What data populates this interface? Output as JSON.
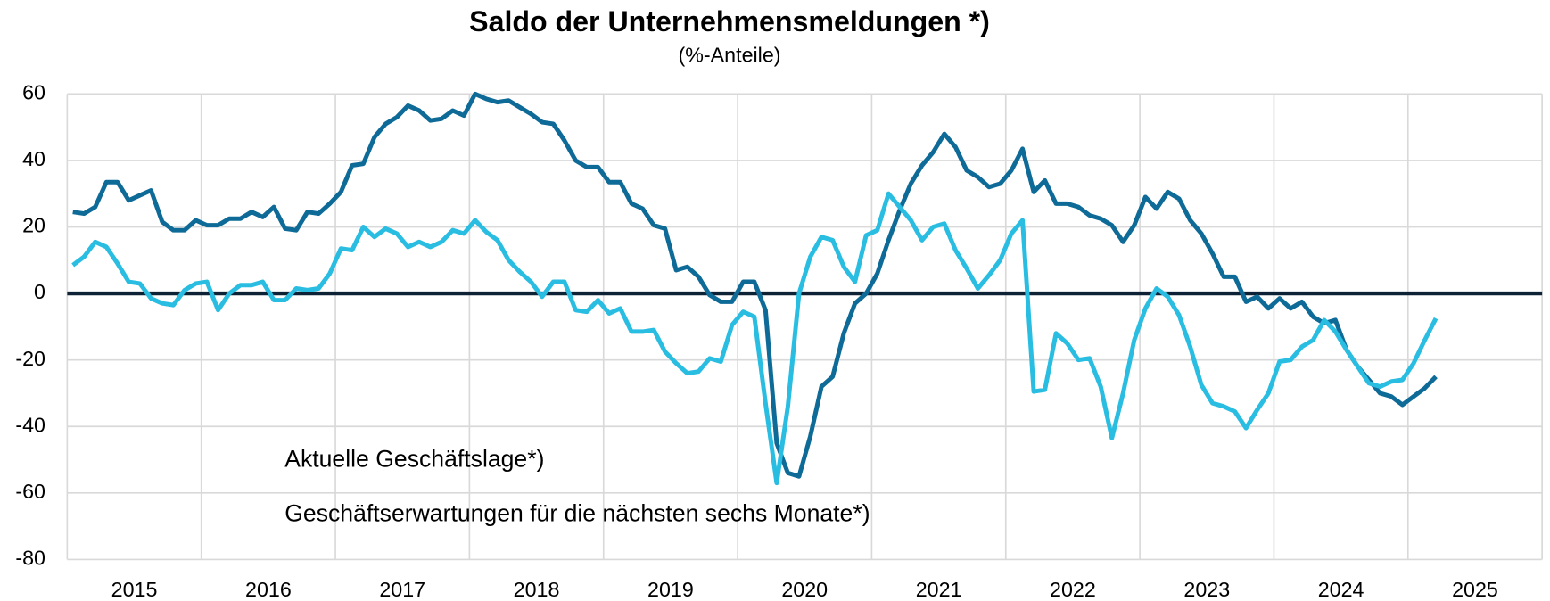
{
  "chart_data": {
    "type": "line",
    "title": "Saldo der Unternehmensmeldungen *)",
    "subtitle": "(%-Anteile)",
    "x": [
      "2015",
      null,
      null,
      null,
      null,
      null,
      null,
      null,
      null,
      null,
      null,
      null,
      "2016",
      null,
      null,
      null,
      null,
      null,
      null,
      null,
      null,
      null,
      null,
      null,
      "2017",
      null,
      null,
      null,
      null,
      null,
      null,
      null,
      null,
      null,
      null,
      null,
      "2018",
      null,
      null,
      null,
      null,
      null,
      null,
      null,
      null,
      null,
      null,
      null,
      "2019",
      null,
      null,
      null,
      null,
      null,
      null,
      null,
      null,
      null,
      null,
      null,
      "2020",
      null,
      null,
      null,
      null,
      null,
      null,
      null,
      null,
      null,
      null,
      null,
      "2021",
      null,
      null,
      null,
      null,
      null,
      null,
      null,
      null,
      null,
      null,
      null,
      "2022",
      null,
      null,
      null,
      null,
      null,
      null,
      null,
      null,
      null,
      null,
      null,
      "2023",
      null,
      null,
      null,
      null,
      null,
      null,
      null,
      null,
      null,
      null,
      null,
      "2024",
      null,
      null,
      null,
      null,
      null,
      null,
      null,
      null,
      null,
      null,
      null,
      "2025",
      null,
      null
    ],
    "series": [
      {
        "name": "Aktuelle Geschäftslage*)",
        "color": "#0e6a97",
        "values": [
          24.5,
          24,
          26,
          33.5,
          33.5,
          28,
          29.5,
          31,
          21.5,
          19,
          19,
          22,
          20.5,
          20.5,
          22.5,
          22.5,
          24.5,
          23,
          26,
          19.5,
          19,
          24.5,
          24,
          27,
          30.5,
          38.5,
          39,
          47,
          51,
          53,
          56.5,
          55,
          52,
          52.5,
          55,
          53.5,
          60,
          58.5,
          57.5,
          58,
          56,
          54,
          51.5,
          51,
          46,
          40,
          38,
          38,
          33.5,
          33.5,
          27,
          25.5,
          20.5,
          19.5,
          7,
          8,
          5,
          -0.5,
          -2.5,
          -2.5,
          3.5,
          3.5,
          -5,
          -45,
          -54,
          -55,
          -43,
          -28,
          -25,
          -12,
          -3,
          0,
          6,
          16,
          25,
          33,
          38.5,
          42.5,
          48,
          44,
          37,
          35,
          32,
          33,
          37,
          43.5,
          30.5,
          34,
          27,
          27,
          26,
          23.5,
          22.5,
          20.5,
          15.5,
          20.5,
          29,
          25.5,
          30.5,
          28.5,
          22,
          18,
          12,
          5,
          5,
          -2.5,
          -1,
          -4.5,
          -1.5,
          -4.5,
          -2.5,
          -7,
          -9,
          -8,
          -17,
          -22,
          -26,
          -30,
          -31,
          -33.5,
          -31,
          -28.5,
          -25
        ]
      },
      {
        "name": "Geschäftserwartungen für die nächsten sechs Monate*)",
        "color": "#29bde2",
        "values": [
          8.5,
          11,
          15.5,
          14,
          9,
          3.5,
          3,
          -1.5,
          -3,
          -3.5,
          1,
          3,
          3.5,
          -5,
          0,
          2.5,
          2.5,
          3.5,
          -2,
          -2,
          1.5,
          1,
          1.5,
          6,
          13.5,
          13,
          20,
          17,
          19.5,
          18,
          14,
          15.5,
          14,
          15.5,
          19,
          18,
          22,
          18.5,
          16,
          10,
          6.5,
          3.5,
          -1,
          3.5,
          3.5,
          -5,
          -5.5,
          -2,
          -6,
          -4.5,
          -11.5,
          -11.5,
          -11,
          -17.5,
          -21,
          -24,
          -23.5,
          -19.5,
          -20.5,
          -9.5,
          -5.5,
          -7,
          -33,
          -57,
          -34,
          0,
          11,
          17,
          16,
          8,
          3.5,
          17.5,
          19,
          30,
          26,
          22,
          16,
          20,
          21,
          13,
          7.5,
          1.5,
          5.5,
          10,
          18,
          22,
          -29.5,
          -29,
          -12,
          -15,
          -20,
          -19.5,
          -28,
          -43.5,
          -30,
          -14,
          -4.5,
          1.5,
          -1,
          -6.5,
          -16,
          -27.5,
          -33,
          -34,
          -35.5,
          -40.5,
          -35,
          -30,
          -20.5,
          -20,
          -16,
          -14,
          -8,
          -11.5,
          -17,
          -22,
          -27,
          -28,
          -26.5,
          -26,
          -21,
          -14,
          -7.5
        ]
      }
    ],
    "ylim": [
      -80,
      60
    ],
    "yticks": [
      -80,
      -60,
      -40,
      -20,
      0,
      20,
      40,
      60
    ],
    "grid": true,
    "zero_line": true
  }
}
